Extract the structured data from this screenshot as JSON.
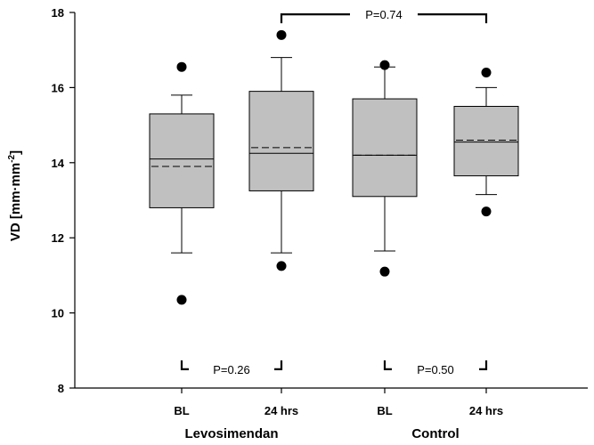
{
  "chart_data": {
    "type": "box",
    "ylabel": "VD [mm·mm",
    "ylabel_sup": "-2",
    "ylabel_close": "]",
    "ylim": [
      8,
      18
    ],
    "yticks": [
      8,
      10,
      12,
      14,
      16,
      18
    ],
    "categories": [
      "BL",
      "24 hrs",
      "BL",
      "24 hrs"
    ],
    "groups": [
      {
        "label": "Levosimendan",
        "categories": [
          0,
          1
        ]
      },
      {
        "label": "Control",
        "categories": [
          2,
          3
        ]
      }
    ],
    "boxes": [
      {
        "whisker_low": 11.6,
        "q1": 12.8,
        "median": 14.1,
        "mean": 13.9,
        "q3": 15.3,
        "whisker_high": 15.8,
        "outliers": [
          16.55,
          10.35
        ]
      },
      {
        "whisker_low": 11.6,
        "q1": 13.25,
        "median": 14.25,
        "mean": 14.4,
        "q3": 15.9,
        "whisker_high": 16.8,
        "outliers": [
          17.4,
          11.25
        ]
      },
      {
        "whisker_low": 11.65,
        "q1": 13.1,
        "median": 14.2,
        "mean": 14.2,
        "q3": 15.7,
        "whisker_high": 16.55,
        "outliers": [
          16.6,
          11.1
        ]
      },
      {
        "whisker_low": 13.15,
        "q1": 13.65,
        "median": 14.55,
        "mean": 14.6,
        "q3": 15.5,
        "whisker_high": 16.0,
        "outliers": [
          16.4,
          12.7
        ]
      }
    ],
    "comparisons": [
      {
        "label": "P=0.74",
        "from": 1,
        "to": 3,
        "position": "top",
        "y": 17.95
      },
      {
        "label": "P=0.26",
        "from": 0,
        "to": 1,
        "position": "bottom",
        "y": 8.5
      },
      {
        "label": "P=0.50",
        "from": 2,
        "to": 3,
        "position": "bottom",
        "y": 8.5
      }
    ],
    "colors": {
      "box_fill": "#c0c0c0",
      "line": "#000000"
    }
  }
}
